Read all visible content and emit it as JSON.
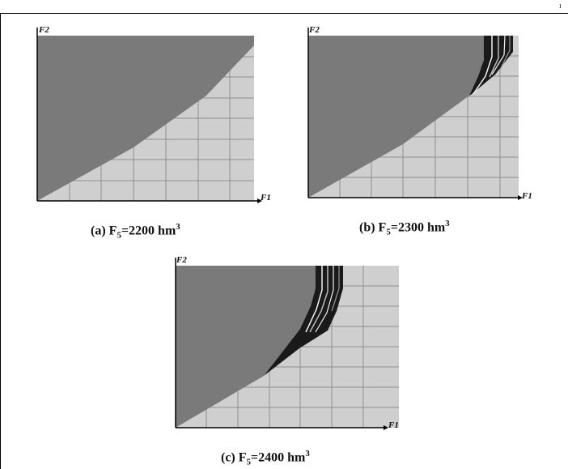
{
  "header_mark": "ı",
  "axes": {
    "x": "F1",
    "y": "F2"
  },
  "captions": [
    {
      "prefix": "(a) F",
      "sub": "5",
      "value": "=2200 hm",
      "sup": "3"
    },
    {
      "prefix": "(b) F",
      "sub": "5",
      "value": "=2300 hm",
      "sup": "3"
    },
    {
      "prefix": "(c) F",
      "sub": "5",
      "value": "=2400 hm",
      "sup": "3"
    }
  ],
  "colors": {
    "feasible_region": "#7a7a7a",
    "background_grid": "#cfcfcf",
    "grid_lines": "#8f8f8f",
    "transition_dark": "#1a1a1a",
    "transition_light": "#f2f2f2"
  }
}
